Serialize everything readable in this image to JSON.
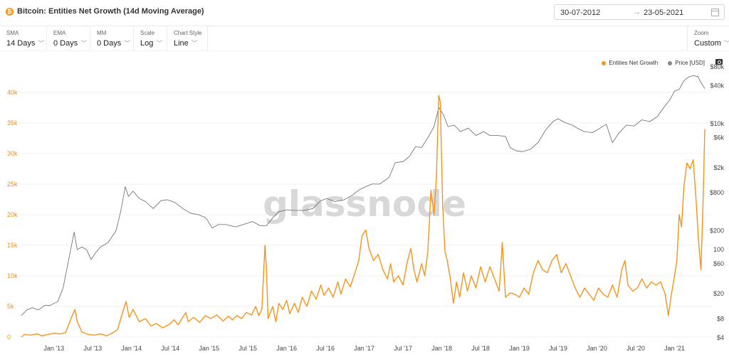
{
  "header": {
    "title": "Bitcoin: Entities Net Growth (14d Moving Average)",
    "icon": "bitcoin-icon",
    "date_from": "30-07-2012",
    "date_arrow": "→",
    "date_to": "23-05-2021"
  },
  "controls": {
    "sma": {
      "label": "SMA",
      "value": "14 Days"
    },
    "ema": {
      "label": "EMA",
      "value": "0 Days"
    },
    "mm": {
      "label": "MM",
      "value": "0 Days"
    },
    "scale": {
      "label": "Scale",
      "value": "Log"
    },
    "chart_style": {
      "label": "Chart Style",
      "value": "Line"
    },
    "zoom": {
      "label": "Zoom",
      "value": "Custom"
    }
  },
  "legend": {
    "series1": "Entities Net Growth",
    "series2": "Price [USD]"
  },
  "watermark": "glassnode",
  "colors": {
    "growth": "#f7931a",
    "price": "#666666",
    "left_axis": "#e8901c"
  },
  "chart_data": {
    "type": "line",
    "title": "Bitcoin: Entities Net Growth (14d Moving Average)",
    "x_ticks": [
      "Jan '13",
      "Jul '13",
      "Jan '14",
      "Jul '14",
      "Jan '15",
      "Jul '15",
      "Jan '16",
      "Jul '16",
      "Jan '17",
      "Jul '17",
      "Jan '18",
      "Jul '18",
      "Jan '19",
      "Jul '19",
      "Jan '20",
      "Jul '20",
      "Jan '21"
    ],
    "x_tick_dates": [
      2013.0,
      2013.5,
      2014.0,
      2014.5,
      2015.0,
      2015.5,
      2016.0,
      2016.5,
      2017.0,
      2017.5,
      2018.0,
      2018.5,
      2019.0,
      2019.5,
      2020.0,
      2020.5,
      2021.0
    ],
    "xlim": [
      2012.58,
      2021.39
    ],
    "left_axis": {
      "label": "",
      "ticks": [
        "0",
        "5k",
        "10k",
        "15k",
        "20k",
        "25k",
        "30k",
        "35k",
        "40k"
      ],
      "tick_values": [
        0,
        5000,
        10000,
        15000,
        20000,
        25000,
        30000,
        35000,
        40000
      ],
      "ylim": [
        0,
        42000
      ]
    },
    "right_axis": {
      "label": "",
      "scale": "log",
      "ticks": [
        "$80k",
        "$40k",
        "$10k",
        "$6k",
        "$2k",
        "$800",
        "$200",
        "100",
        "$60",
        "$20",
        "$8",
        "$4"
      ],
      "tick_values": [
        80000,
        40000,
        10000,
        6000,
        2000,
        800,
        200,
        100,
        60,
        20,
        8,
        4
      ]
    },
    "legend_position": "top-right",
    "grid": "horizontal",
    "series": [
      {
        "name": "Entities Net Growth",
        "axis": "left",
        "color": "#f7931a",
        "points": [
          [
            2012.58,
            0
          ],
          [
            2012.62,
            400
          ],
          [
            2012.7,
            300
          ],
          [
            2012.78,
            500
          ],
          [
            2012.85,
            200
          ],
          [
            2012.92,
            400
          ],
          [
            2013.0,
            600
          ],
          [
            2013.08,
            500
          ],
          [
            2013.15,
            700
          ],
          [
            2013.22,
            3000
          ],
          [
            2013.27,
            4500
          ],
          [
            2013.3,
            2500
          ],
          [
            2013.36,
            800
          ],
          [
            2013.45,
            400
          ],
          [
            2013.52,
            300
          ],
          [
            2013.6,
            500
          ],
          [
            2013.68,
            200
          ],
          [
            2013.75,
            600
          ],
          [
            2013.82,
            1200
          ],
          [
            2013.88,
            3800
          ],
          [
            2013.93,
            5800
          ],
          [
            2013.97,
            3200
          ],
          [
            2014.02,
            4500
          ],
          [
            2014.1,
            2500
          ],
          [
            2014.18,
            3000
          ],
          [
            2014.25,
            1800
          ],
          [
            2014.32,
            2200
          ],
          [
            2014.4,
            1500
          ],
          [
            2014.48,
            2000
          ],
          [
            2014.55,
            2800
          ],
          [
            2014.6,
            2000
          ],
          [
            2014.65,
            3000
          ],
          [
            2014.7,
            4000
          ],
          [
            2014.73,
            2500
          ],
          [
            2014.8,
            3200
          ],
          [
            2014.88,
            2400
          ],
          [
            2014.95,
            3500
          ],
          [
            2015.02,
            3000
          ],
          [
            2015.1,
            3600
          ],
          [
            2015.18,
            2600
          ],
          [
            2015.25,
            3400
          ],
          [
            2015.3,
            2800
          ],
          [
            2015.36,
            3500
          ],
          [
            2015.42,
            3000
          ],
          [
            2015.48,
            4000
          ],
          [
            2015.55,
            3600
          ],
          [
            2015.6,
            5000
          ],
          [
            2015.64,
            3500
          ],
          [
            2015.68,
            4500
          ],
          [
            2015.72,
            15000
          ],
          [
            2015.74,
            11000
          ],
          [
            2015.76,
            3000
          ],
          [
            2015.82,
            5000
          ],
          [
            2015.86,
            2500
          ],
          [
            2015.9,
            5500
          ],
          [
            2015.95,
            4500
          ],
          [
            2016.0,
            6000
          ],
          [
            2016.04,
            3800
          ],
          [
            2016.1,
            5500
          ],
          [
            2016.15,
            4000
          ],
          [
            2016.2,
            6500
          ],
          [
            2016.26,
            5000
          ],
          [
            2016.32,
            7500
          ],
          [
            2016.38,
            6200
          ],
          [
            2016.44,
            8500
          ],
          [
            2016.48,
            6800
          ],
          [
            2016.54,
            8000
          ],
          [
            2016.6,
            6500
          ],
          [
            2016.66,
            9000
          ],
          [
            2016.7,
            7000
          ],
          [
            2016.76,
            9500
          ],
          [
            2016.82,
            8200
          ],
          [
            2016.88,
            10500
          ],
          [
            2016.93,
            12500
          ],
          [
            2016.97,
            16500
          ],
          [
            2017.02,
            17500
          ],
          [
            2017.06,
            14500
          ],
          [
            2017.12,
            12500
          ],
          [
            2017.18,
            13500
          ],
          [
            2017.24,
            11000
          ],
          [
            2017.3,
            9500
          ],
          [
            2017.34,
            12000
          ],
          [
            2017.38,
            9000
          ],
          [
            2017.44,
            10000
          ],
          [
            2017.5,
            8500
          ],
          [
            2017.55,
            12000
          ],
          [
            2017.6,
            14500
          ],
          [
            2017.64,
            11000
          ],
          [
            2017.68,
            9000
          ],
          [
            2017.74,
            12000
          ],
          [
            2017.78,
            10000
          ],
          [
            2017.82,
            14000
          ],
          [
            2017.86,
            24000
          ],
          [
            2017.9,
            20000
          ],
          [
            2017.93,
            26000
          ],
          [
            2017.96,
            39500
          ],
          [
            2017.98,
            38500
          ],
          [
            2018.01,
            22000
          ],
          [
            2018.04,
            14000
          ],
          [
            2018.07,
            12500
          ],
          [
            2018.11,
            9500
          ],
          [
            2018.15,
            5500
          ],
          [
            2018.19,
            9000
          ],
          [
            2018.23,
            6500
          ],
          [
            2018.28,
            10500
          ],
          [
            2018.33,
            7500
          ],
          [
            2018.38,
            10000
          ],
          [
            2018.44,
            8000
          ],
          [
            2018.5,
            11500
          ],
          [
            2018.56,
            9000
          ],
          [
            2018.62,
            11500
          ],
          [
            2018.68,
            9500
          ],
          [
            2018.74,
            7500
          ],
          [
            2018.78,
            15500
          ],
          [
            2018.82,
            6500
          ],
          [
            2018.88,
            7200
          ],
          [
            2018.94,
            7000
          ],
          [
            2019.0,
            6500
          ],
          [
            2019.06,
            8000
          ],
          [
            2019.12,
            7000
          ],
          [
            2019.18,
            10500
          ],
          [
            2019.24,
            12500
          ],
          [
            2019.3,
            11000
          ],
          [
            2019.36,
            10500
          ],
          [
            2019.42,
            12500
          ],
          [
            2019.48,
            13500
          ],
          [
            2019.54,
            10500
          ],
          [
            2019.6,
            12000
          ],
          [
            2019.66,
            10000
          ],
          [
            2019.72,
            8000
          ],
          [
            2019.78,
            6500
          ],
          [
            2019.84,
            8000
          ],
          [
            2019.9,
            7000
          ],
          [
            2019.96,
            6000
          ],
          [
            2020.02,
            8000
          ],
          [
            2020.08,
            7000
          ],
          [
            2020.14,
            6500
          ],
          [
            2020.2,
            8500
          ],
          [
            2020.26,
            6500
          ],
          [
            2020.32,
            11000
          ],
          [
            2020.36,
            12500
          ],
          [
            2020.4,
            8500
          ],
          [
            2020.46,
            7500
          ],
          [
            2020.52,
            8000
          ],
          [
            2020.58,
            9500
          ],
          [
            2020.64,
            8000
          ],
          [
            2020.7,
            9000
          ],
          [
            2020.76,
            8500
          ],
          [
            2020.82,
            9000
          ],
          [
            2020.88,
            7000
          ],
          [
            2020.92,
            3500
          ],
          [
            2020.96,
            7000
          ],
          [
            2021.0,
            10000
          ],
          [
            2021.03,
            12500
          ],
          [
            2021.06,
            20000
          ],
          [
            2021.09,
            18000
          ],
          [
            2021.12,
            24500
          ],
          [
            2021.16,
            28500
          ],
          [
            2021.2,
            27500
          ],
          [
            2021.24,
            29000
          ],
          [
            2021.28,
            22000
          ],
          [
            2021.31,
            15500
          ],
          [
            2021.34,
            11000
          ],
          [
            2021.37,
            23000
          ],
          [
            2021.39,
            34000
          ]
        ]
      },
      {
        "name": "Price [USD]",
        "axis": "right",
        "color": "#666666",
        "points": [
          [
            2012.58,
            9
          ],
          [
            2012.65,
            11
          ],
          [
            2012.72,
            12
          ],
          [
            2012.8,
            11
          ],
          [
            2012.88,
            13
          ],
          [
            2012.95,
            13
          ],
          [
            2013.05,
            15
          ],
          [
            2013.12,
            25
          ],
          [
            2013.18,
            60
          ],
          [
            2013.26,
            190
          ],
          [
            2013.3,
            100
          ],
          [
            2013.36,
            110
          ],
          [
            2013.42,
            100
          ],
          [
            2013.48,
            70
          ],
          [
            2013.54,
            90
          ],
          [
            2013.6,
            110
          ],
          [
            2013.7,
            130
          ],
          [
            2013.8,
            200
          ],
          [
            2013.86,
            400
          ],
          [
            2013.92,
            1000
          ],
          [
            2013.96,
            700
          ],
          [
            2014.02,
            850
          ],
          [
            2014.1,
            650
          ],
          [
            2014.18,
            580
          ],
          [
            2014.28,
            450
          ],
          [
            2014.38,
            600
          ],
          [
            2014.46,
            620
          ],
          [
            2014.56,
            560
          ],
          [
            2014.66,
            450
          ],
          [
            2014.76,
            380
          ],
          [
            2014.86,
            360
          ],
          [
            2014.96,
            320
          ],
          [
            2015.04,
            220
          ],
          [
            2015.12,
            250
          ],
          [
            2015.22,
            250
          ],
          [
            2015.34,
            230
          ],
          [
            2015.44,
            250
          ],
          [
            2015.56,
            280
          ],
          [
            2015.66,
            240
          ],
          [
            2015.74,
            240
          ],
          [
            2015.82,
            320
          ],
          [
            2015.9,
            400
          ],
          [
            2016.0,
            430
          ],
          [
            2016.1,
            420
          ],
          [
            2016.22,
            420
          ],
          [
            2016.34,
            450
          ],
          [
            2016.44,
            600
          ],
          [
            2016.52,
            650
          ],
          [
            2016.62,
            580
          ],
          [
            2016.74,
            620
          ],
          [
            2016.84,
            720
          ],
          [
            2016.94,
            900
          ],
          [
            2017.02,
            1000
          ],
          [
            2017.1,
            1100
          ],
          [
            2017.2,
            1100
          ],
          [
            2017.32,
            1400
          ],
          [
            2017.4,
            2400
          ],
          [
            2017.5,
            2500
          ],
          [
            2017.58,
            3000
          ],
          [
            2017.66,
            4300
          ],
          [
            2017.74,
            4200
          ],
          [
            2017.82,
            6000
          ],
          [
            2017.9,
            9000
          ],
          [
            2017.96,
            18000
          ],
          [
            2018.02,
            14000
          ],
          [
            2018.08,
            9000
          ],
          [
            2018.16,
            9500
          ],
          [
            2018.24,
            7500
          ],
          [
            2018.34,
            8500
          ],
          [
            2018.44,
            6500
          ],
          [
            2018.54,
            7500
          ],
          [
            2018.62,
            6500
          ],
          [
            2018.72,
            6500
          ],
          [
            2018.82,
            6300
          ],
          [
            2018.88,
            4200
          ],
          [
            2018.96,
            3700
          ],
          [
            2019.04,
            3600
          ],
          [
            2019.14,
            3900
          ],
          [
            2019.24,
            5000
          ],
          [
            2019.34,
            8000
          ],
          [
            2019.44,
            11000
          ],
          [
            2019.5,
            12000
          ],
          [
            2019.58,
            10500
          ],
          [
            2019.68,
            9500
          ],
          [
            2019.76,
            8300
          ],
          [
            2019.84,
            7500
          ],
          [
            2019.94,
            7200
          ],
          [
            2020.04,
            8500
          ],
          [
            2020.12,
            9800
          ],
          [
            2020.2,
            5000
          ],
          [
            2020.28,
            7000
          ],
          [
            2020.38,
            9500
          ],
          [
            2020.48,
            9200
          ],
          [
            2020.58,
            11500
          ],
          [
            2020.68,
            10800
          ],
          [
            2020.78,
            13000
          ],
          [
            2020.86,
            18000
          ],
          [
            2020.94,
            24000
          ],
          [
            2021.0,
            33000
          ],
          [
            2021.06,
            35000
          ],
          [
            2021.12,
            48000
          ],
          [
            2021.18,
            55000
          ],
          [
            2021.24,
            58000
          ],
          [
            2021.3,
            56000
          ],
          [
            2021.34,
            45000
          ],
          [
            2021.39,
            36000
          ]
        ]
      }
    ]
  }
}
